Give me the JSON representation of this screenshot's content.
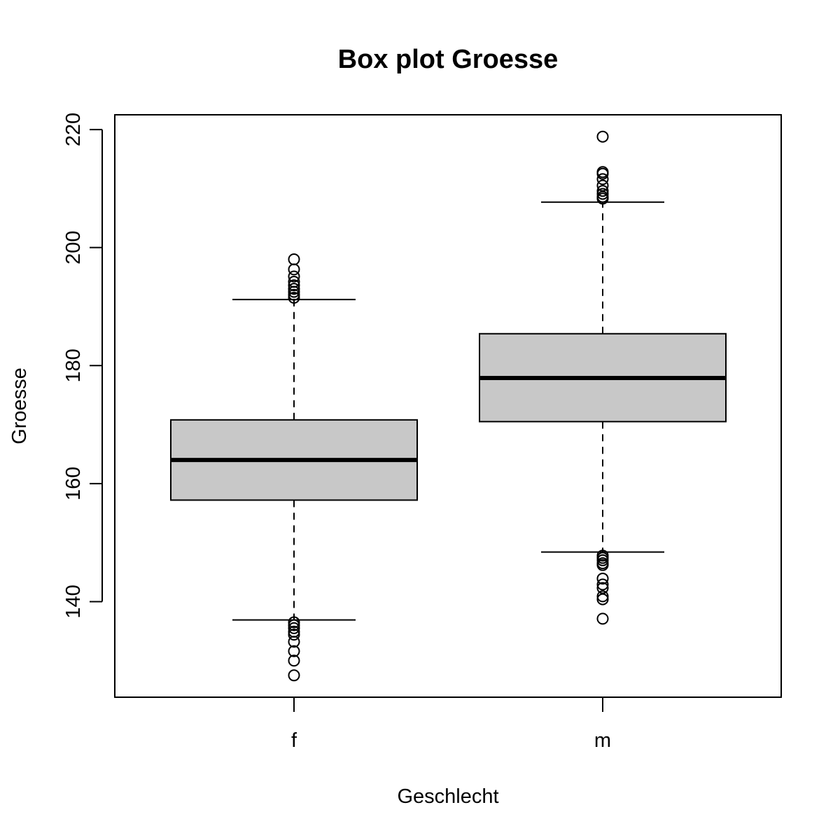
{
  "chart_data": {
    "type": "box",
    "title": "Box plot Groesse",
    "xlabel": "Geschlecht",
    "ylabel": "Groesse",
    "categories": [
      "f",
      "m"
    ],
    "y_ticks": [
      140,
      160,
      180,
      200,
      220
    ],
    "ylim": [
      123.8,
      222.5
    ],
    "box_color": "#c8c8c8",
    "boxes": [
      {
        "category": "f",
        "whisker_low": 136.9,
        "q1": 157.2,
        "median": 164.0,
        "q3": 170.8,
        "whisker_high": 191.2,
        "outliers": [
          198.0,
          196.3,
          195.1,
          194.2,
          193.6,
          193.0,
          192.5,
          192.0,
          191.5,
          136.5,
          136.0,
          135.5,
          134.9,
          134.4,
          133.2,
          131.6,
          130.0,
          127.5
        ]
      },
      {
        "category": "m",
        "whisker_low": 148.4,
        "q1": 170.5,
        "median": 177.9,
        "q3": 185.4,
        "whisker_high": 207.7,
        "outliers": [
          218.8,
          212.8,
          212.5,
          211.6,
          210.5,
          209.6,
          209.1,
          208.6,
          208.3,
          147.8,
          147.4,
          147.0,
          146.5,
          146.2,
          143.9,
          142.9,
          142.3,
          140.9,
          140.4,
          137.1
        ]
      }
    ]
  }
}
